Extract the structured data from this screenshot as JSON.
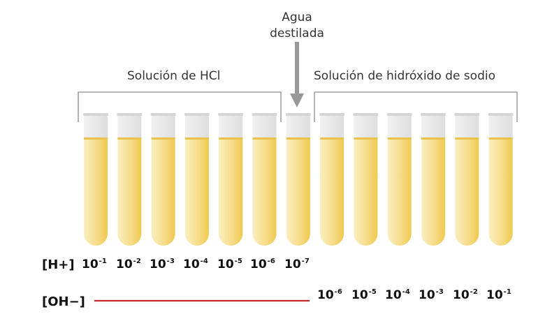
{
  "groups": {
    "acid_label": "Solución de HCl",
    "base_label": "Solución de hidróxido de sodio",
    "water_label_line1": "Agua",
    "water_label_line2": "destilada"
  },
  "tube_count": 13,
  "colors": {
    "liquid_light": "#fbeec0",
    "liquid_dark": "#f2cf62",
    "glass": "#e6e6e6",
    "bracket": "#8c8c8c",
    "arrow": "#999999",
    "oh_line": "#c62828"
  },
  "h_row": {
    "label": "[H+]",
    "values": [
      {
        "base": "10",
        "exp": "-1"
      },
      {
        "base": "10",
        "exp": "-2"
      },
      {
        "base": "10",
        "exp": "-3"
      },
      {
        "base": "10",
        "exp": "-4"
      },
      {
        "base": "10",
        "exp": "-5"
      },
      {
        "base": "10",
        "exp": "-6"
      },
      {
        "base": "10",
        "exp": "-7"
      }
    ]
  },
  "oh_row": {
    "label": "[OH−]",
    "values": [
      {
        "base": "10",
        "exp": "-6"
      },
      {
        "base": "10",
        "exp": "-5"
      },
      {
        "base": "10",
        "exp": "-4"
      },
      {
        "base": "10",
        "exp": "-3"
      },
      {
        "base": "10",
        "exp": "-2"
      },
      {
        "base": "10",
        "exp": "-1"
      }
    ]
  }
}
